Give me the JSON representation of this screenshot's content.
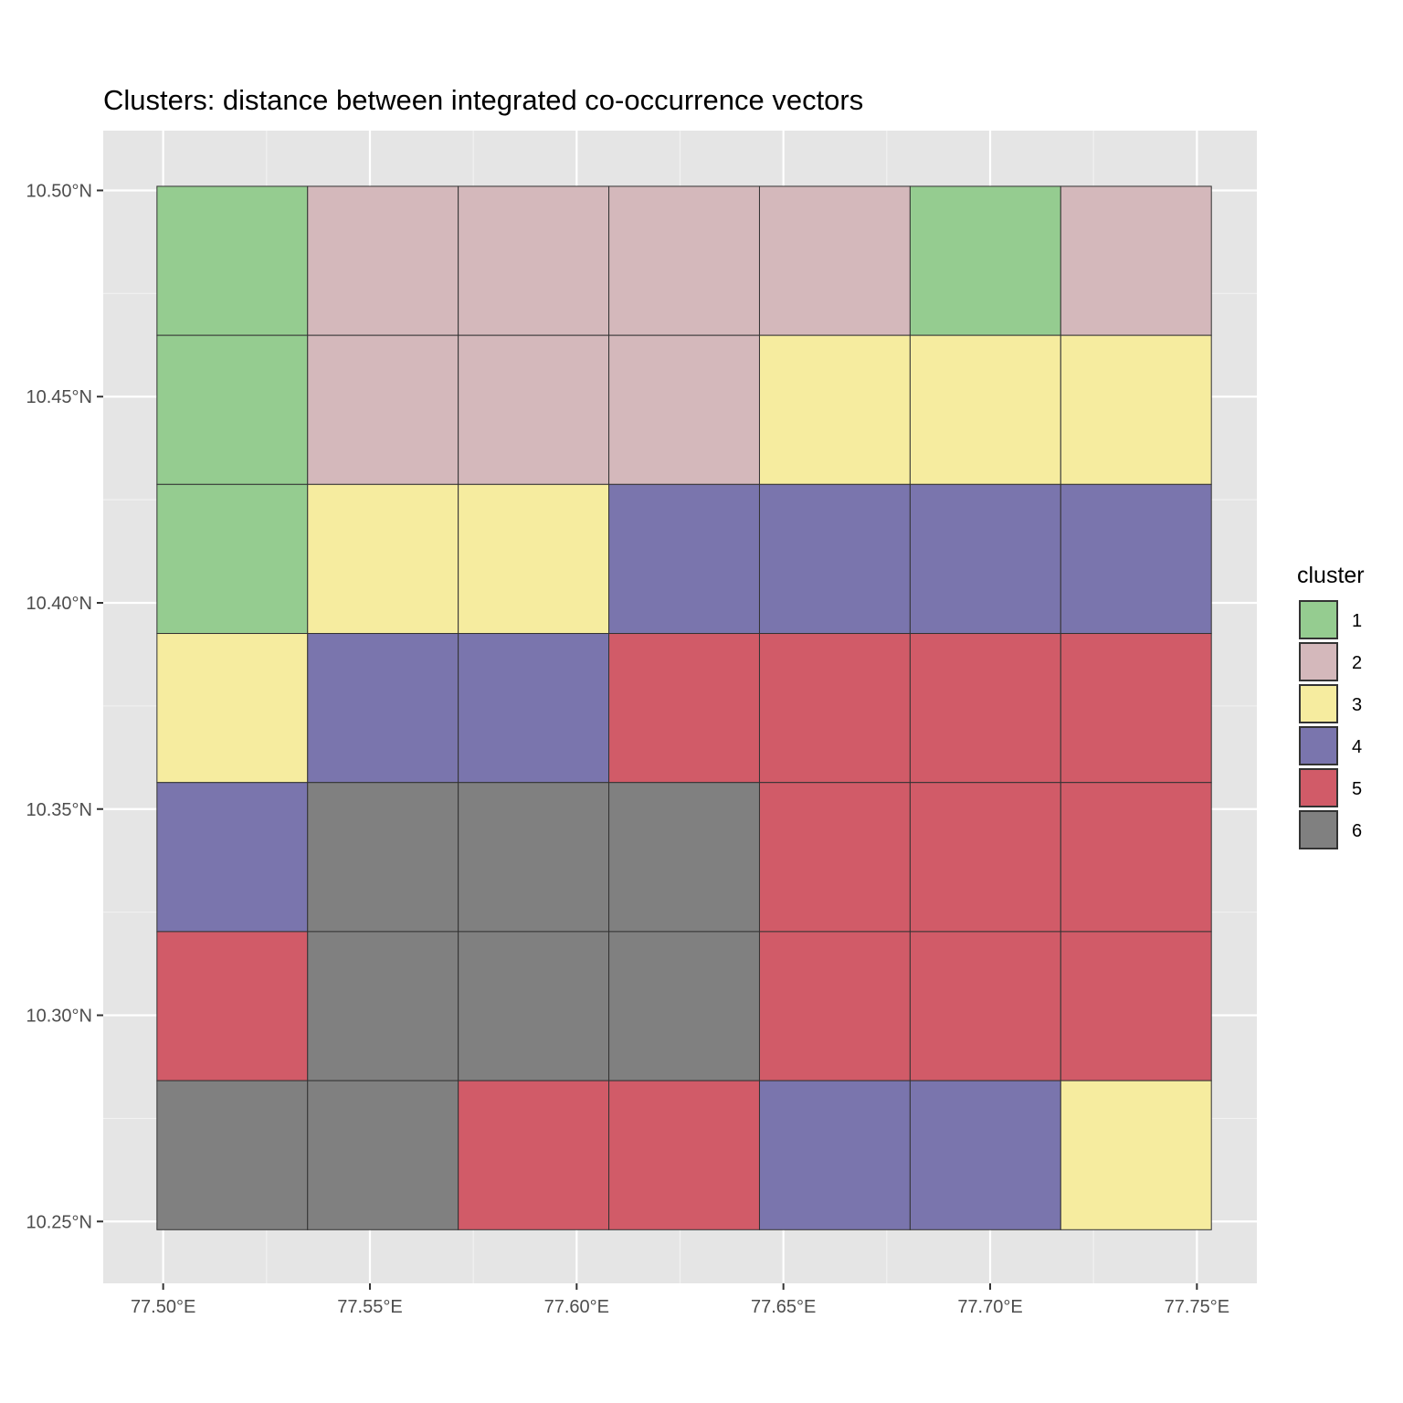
{
  "chart_data": {
    "type": "heatmap",
    "title": "Clusters: distance between integrated co-occurrence vectors",
    "x_ticks": [
      {
        "value": 77.5,
        "label": "77.50°E"
      },
      {
        "value": 77.55,
        "label": "77.55°E"
      },
      {
        "value": 77.6,
        "label": "77.60°E"
      },
      {
        "value": 77.65,
        "label": "77.65°E"
      },
      {
        "value": 77.7,
        "label": "77.70°E"
      },
      {
        "value": 77.75,
        "label": "77.75°E"
      }
    ],
    "y_ticks": [
      {
        "value": 10.5,
        "label": "10.50°N"
      },
      {
        "value": 10.45,
        "label": "10.45°N"
      },
      {
        "value": 10.4,
        "label": "10.40°N"
      },
      {
        "value": 10.35,
        "label": "10.35°N"
      },
      {
        "value": 10.3,
        "label": "10.30°N"
      },
      {
        "value": 10.25,
        "label": "10.25°N"
      }
    ],
    "xlim": [
      77.4855,
      77.7645
    ],
    "ylim": [
      10.235,
      10.5145
    ],
    "grid_extent": {
      "lon": [
        77.4985,
        77.7535
      ],
      "lat": [
        10.248,
        10.501
      ]
    },
    "columns": 7,
    "rows": 7,
    "cells": [
      [
        1,
        2,
        2,
        2,
        2,
        1,
        2
      ],
      [
        1,
        2,
        2,
        2,
        3,
        3,
        3
      ],
      [
        1,
        3,
        3,
        4,
        4,
        4,
        4
      ],
      [
        3,
        4,
        4,
        5,
        5,
        5,
        5
      ],
      [
        4,
        6,
        6,
        6,
        5,
        5,
        5
      ],
      [
        5,
        6,
        6,
        6,
        5,
        5,
        5
      ],
      [
        6,
        6,
        5,
        5,
        4,
        4,
        3
      ]
    ],
    "legend": {
      "title": "cluster",
      "position": "right",
      "entries": [
        {
          "label": "1",
          "color": "#95cc90"
        },
        {
          "label": "2",
          "color": "#d4b8bb"
        },
        {
          "label": "3",
          "color": "#f6ec9f"
        },
        {
          "label": "4",
          "color": "#7a75ad"
        },
        {
          "label": "5",
          "color": "#d15b68"
        },
        {
          "label": "6",
          "color": "#808080"
        }
      ]
    },
    "panel_background": "#e5e5e5",
    "grid": true
  }
}
